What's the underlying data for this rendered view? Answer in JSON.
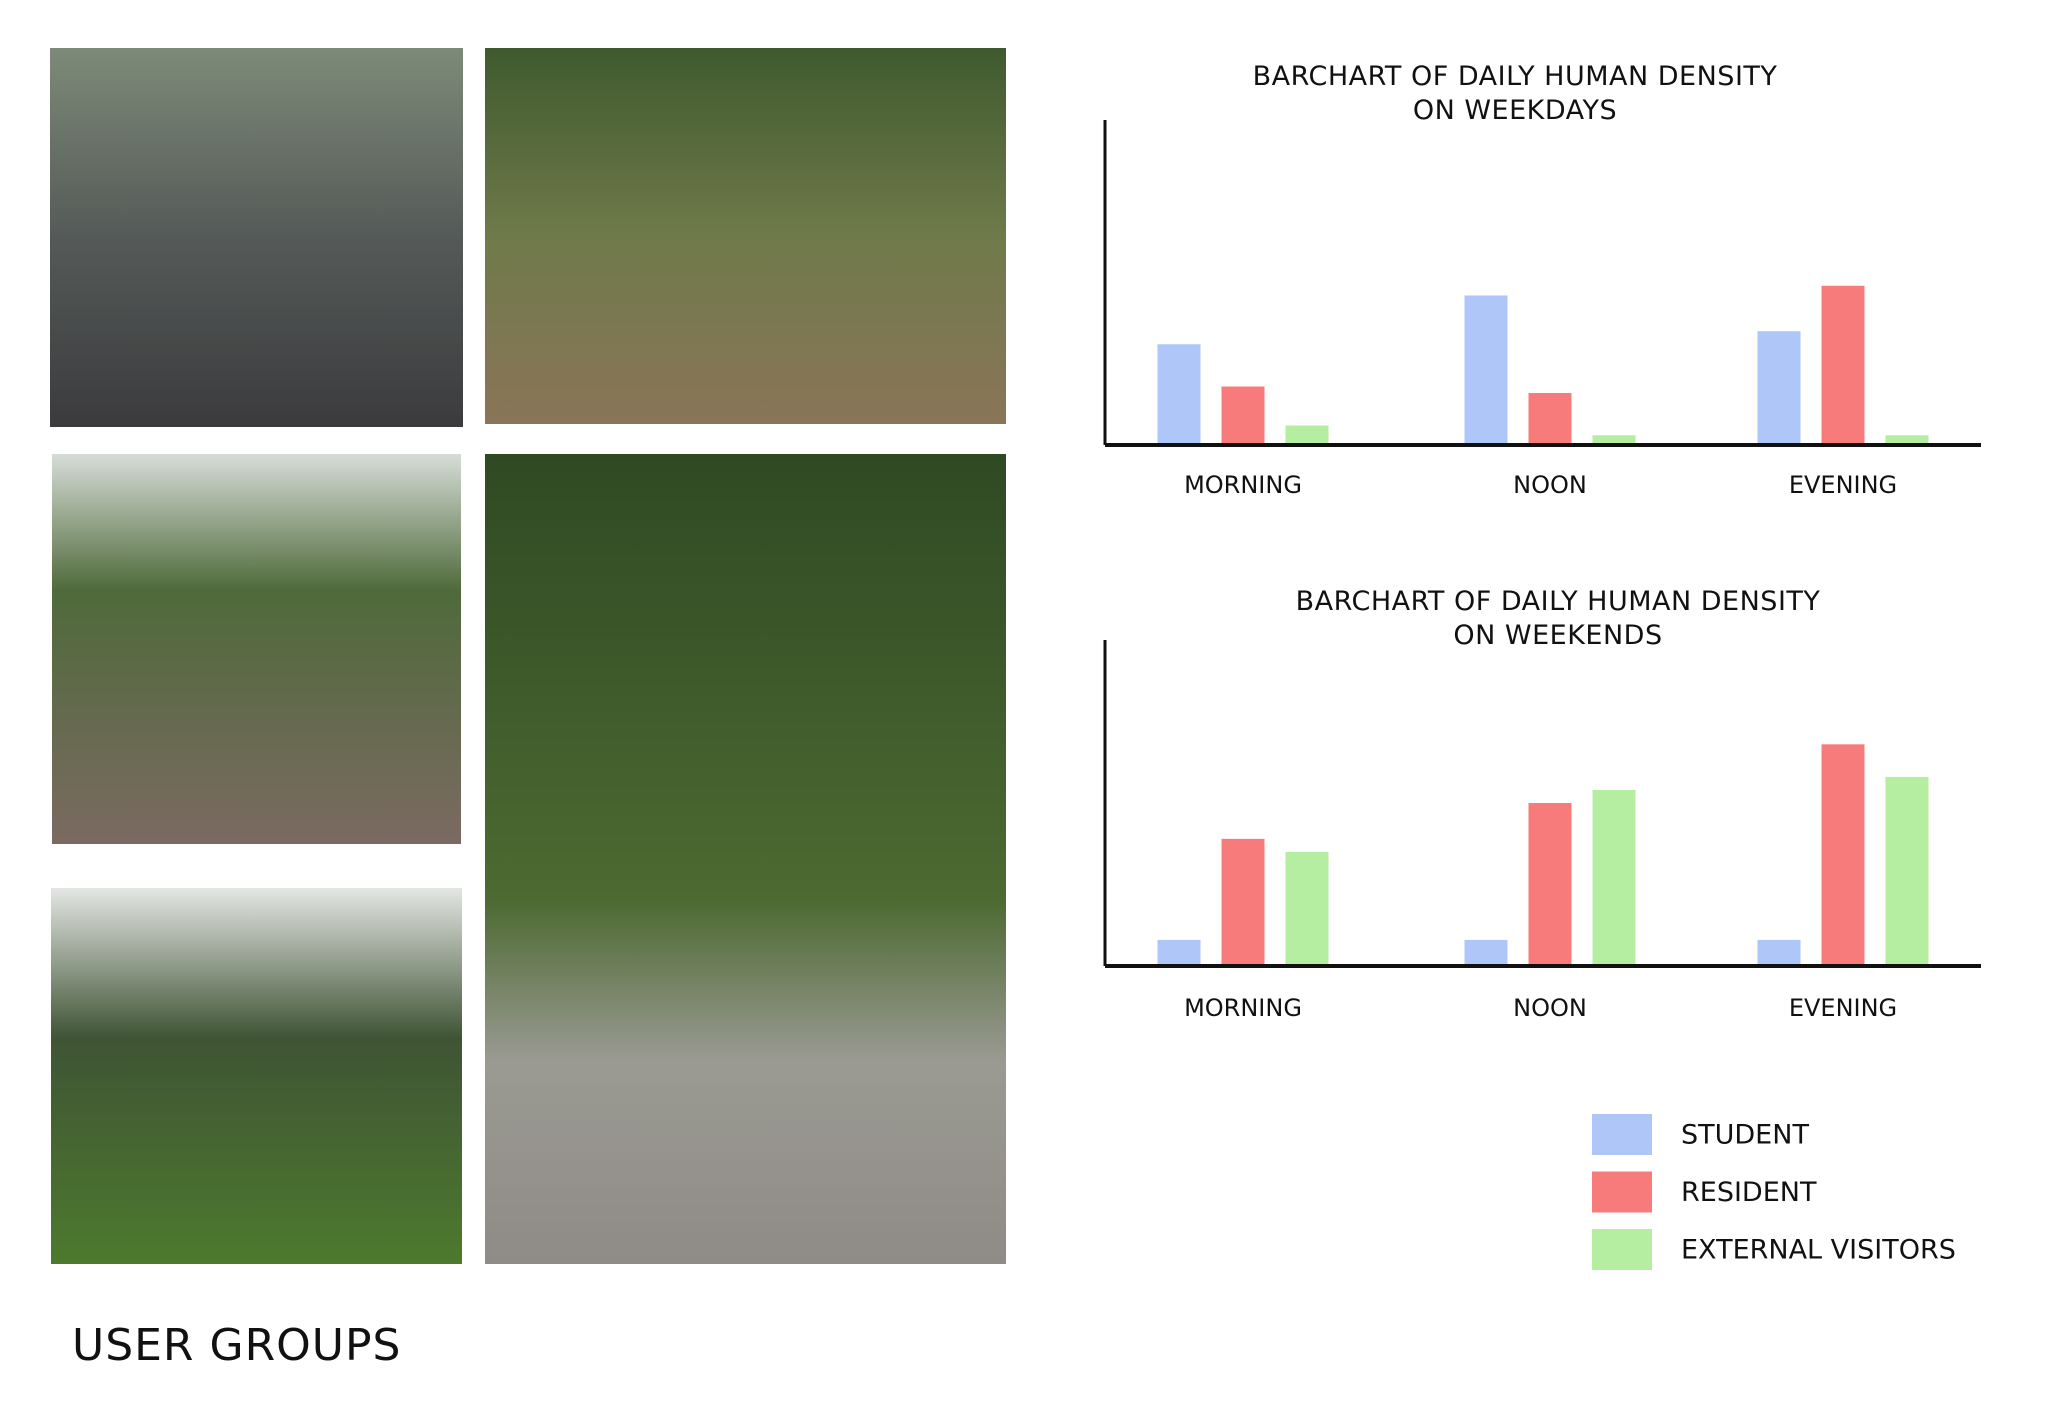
{
  "page_title": "USER GROUPS",
  "chart_data": [
    {
      "type": "bar",
      "title": "BARCHART OF DAILY HUMAN DENSITY\nON WEEKDAYS",
      "categories": [
        "MORNING",
        "NOON",
        "EVENING"
      ],
      "series": [
        {
          "name": "STUDENT",
          "color": "#aec6f8",
          "values": [
            31,
            46,
            35
          ]
        },
        {
          "name": "RESIDENT",
          "color": "#f77b7b",
          "values": [
            18,
            16,
            49
          ]
        },
        {
          "name": "EXTERNAL VISITORS",
          "color": "#b5eea0",
          "values": [
            6,
            3,
            3
          ]
        }
      ],
      "ylim": [
        0,
        100
      ]
    },
    {
      "type": "bar",
      "title": "BARCHART OF DAILY HUMAN DENSITY\nON WEEKENDS",
      "categories": [
        "MORNING",
        "NOON",
        "EVENING"
      ],
      "series": [
        {
          "name": "STUDENT",
          "color": "#aec6f8",
          "values": [
            8,
            8,
            8
          ]
        },
        {
          "name": "RESIDENT",
          "color": "#f77b7b",
          "values": [
            39,
            50,
            68
          ]
        },
        {
          "name": "EXTERNAL VISITORS",
          "color": "#b5eea0",
          "values": [
            35,
            54,
            58
          ]
        }
      ],
      "ylim": [
        0,
        100
      ]
    }
  ]
}
